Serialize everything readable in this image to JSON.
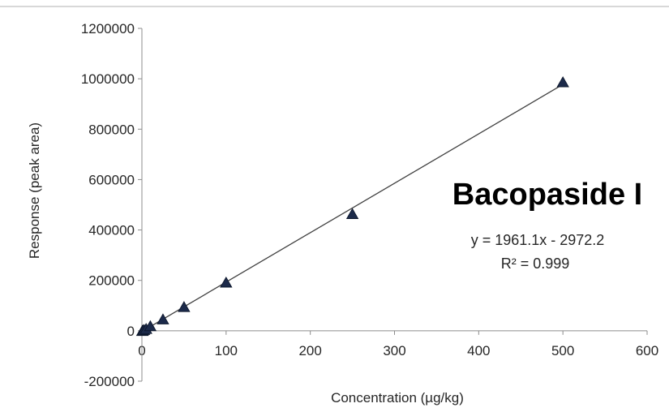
{
  "chart_data": {
    "type": "scatter",
    "title": "Bacopaside I",
    "xlabel": "Concentration (µg/kg)",
    "ylabel": "Response (peak area)",
    "xlim": [
      0,
      600
    ],
    "ylim": [
      -200000,
      1200000
    ],
    "x_ticks": [
      "0",
      "100",
      "200",
      "300",
      "400",
      "500",
      "600"
    ],
    "y_ticks": [
      "-200000",
      "0",
      "200000",
      "400000",
      "600000",
      "800000",
      "1000000",
      "1200000"
    ],
    "grid": false,
    "marker": "triangle",
    "colors": {
      "marker": "#1c2a4a",
      "trendline": "#404040",
      "axis": "#8c8c8c"
    },
    "series": [
      {
        "x": [
          0.5,
          1,
          2.5,
          5,
          10,
          25,
          50,
          100,
          250,
          500
        ],
        "y": [
          -2000,
          0,
          2000,
          6000,
          17000,
          44000,
          93000,
          190000,
          462000,
          985000
        ]
      }
    ],
    "trendline": {
      "slope": 1961.1,
      "intercept": -2972.2,
      "equation": "y = 1961.1x - 2972.2",
      "r_squared": "R² = 0.999"
    }
  }
}
